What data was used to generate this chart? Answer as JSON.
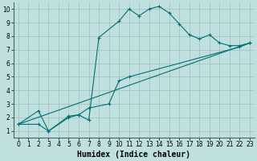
{
  "xlabel": "Humidex (Indice chaleur)",
  "bg_color": "#c0e0e0",
  "grid_color": "#a0c0c0",
  "line_color": "#007070",
  "xlim": [
    -0.5,
    23.5
  ],
  "ylim": [
    0.5,
    10.5
  ],
  "yticks": [
    1,
    2,
    3,
    4,
    5,
    6,
    7,
    8,
    9,
    10
  ],
  "xticks": [
    0,
    1,
    2,
    3,
    4,
    5,
    6,
    7,
    8,
    9,
    10,
    11,
    12,
    13,
    14,
    15,
    16,
    17,
    18,
    19,
    20,
    21,
    22,
    23
  ],
  "curve1_x": [
    0,
    2,
    3,
    5,
    6,
    7,
    8,
    10,
    11,
    12,
    13,
    14,
    15,
    16,
    17,
    18,
    19,
    20,
    21,
    22,
    23
  ],
  "curve1_y": [
    1.5,
    2.5,
    1.0,
    2.1,
    2.2,
    1.8,
    7.9,
    9.1,
    10.0,
    9.5,
    10.0,
    10.2,
    9.7,
    8.9,
    8.1,
    7.8,
    8.1,
    7.5,
    7.3,
    7.3,
    7.5
  ],
  "curve2_x": [
    0,
    2,
    3,
    5,
    6,
    7,
    9,
    10,
    11,
    22,
    23
  ],
  "curve2_y": [
    1.5,
    1.5,
    1.0,
    2.0,
    2.2,
    2.7,
    3.0,
    4.7,
    5.0,
    7.2,
    7.5
  ],
  "curve3_x": [
    0,
    23
  ],
  "curve3_y": [
    1.5,
    7.5
  ],
  "tick_label_size": 5.5,
  "axis_label_size": 7
}
